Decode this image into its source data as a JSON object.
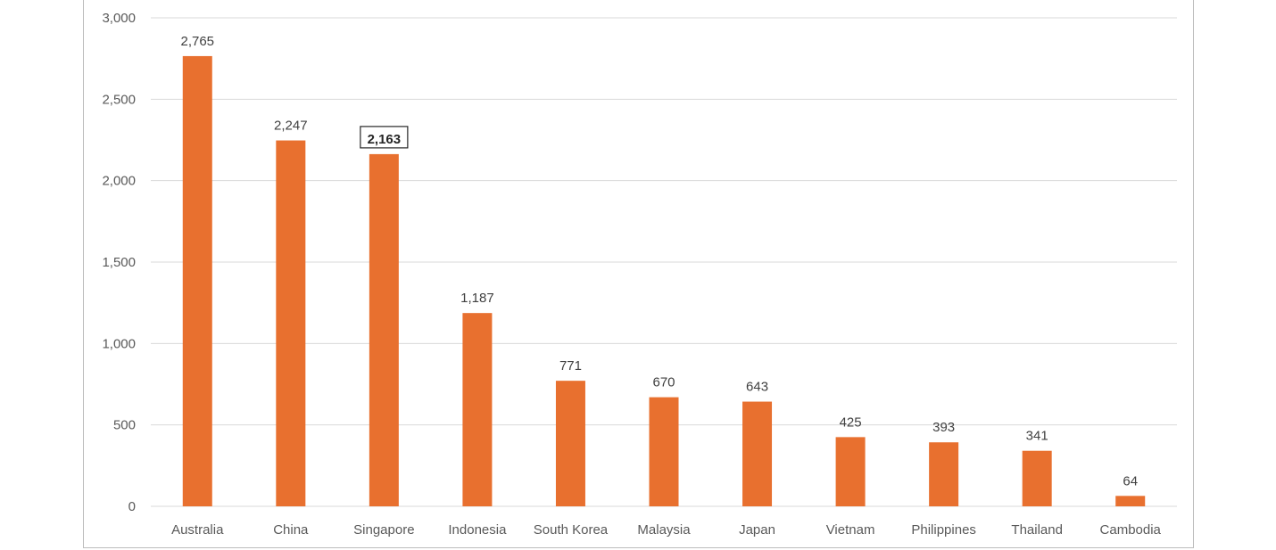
{
  "chart_data": {
    "type": "bar",
    "categories": [
      "Australia",
      "China",
      "Singapore",
      "Indonesia",
      "South Korea",
      "Malaysia",
      "Japan",
      "Vietnam",
      "Philippines",
      "Thailand",
      "Cambodia"
    ],
    "values": [
      2765,
      2247,
      2163,
      1187,
      771,
      670,
      643,
      425,
      393,
      341,
      64
    ],
    "data_labels": [
      "2,765",
      "2,247",
      "2,163",
      "1,187",
      "771",
      "670",
      "643",
      "425",
      "393",
      "341",
      "64"
    ],
    "highlighted_category": "Singapore",
    "yticks": [
      0,
      500,
      1000,
      1500,
      2000,
      2500,
      3000
    ],
    "ytick_labels": [
      "0",
      "500",
      "1,000",
      "1,500",
      "2,000",
      "2,500",
      "3,000"
    ],
    "ylim": [
      0,
      3000
    ],
    "grid": true,
    "legend": "none",
    "bar_color": "#E8702F",
    "gridline_color": "#D9D9D9",
    "title": "",
    "xlabel": "",
    "ylabel": ""
  }
}
